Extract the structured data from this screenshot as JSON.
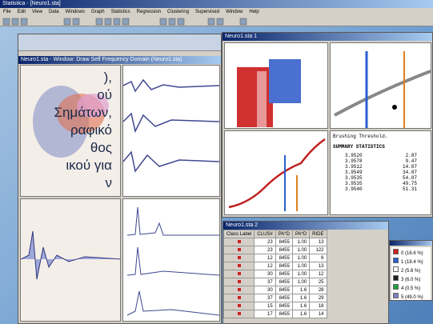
{
  "app": {
    "title": "Statistica - [Neuro1.sta]",
    "menu": [
      "File",
      "Edit",
      "View",
      "Data",
      "Windows",
      "Graph",
      "Statistics",
      "Regression",
      "Clustering",
      "Supervised",
      "Window",
      "Help"
    ]
  },
  "overlay_text": [
    "),",
    "ού",
    "Σημάτων,",
    "ραφικό",
    "θος",
    "ικού για",
    "ν"
  ],
  "left_window": {
    "title": "Neuro1.sta - Window: Draw Self Frequency Domain (Neuro1.sta)"
  },
  "right_window": {
    "title": "Neuro1.sta 1",
    "stats_panel": {
      "heading": "Brushing Threshold.",
      "subheading": "SUMMARY STATISTICS",
      "rows": [
        [
          "3.9520",
          "2.87"
        ],
        [
          "3.9578",
          "9.47"
        ],
        [
          "3.9512",
          "14.87"
        ],
        [
          "3.9549",
          "34.87"
        ],
        [
          "3.9535",
          "54.87"
        ],
        [
          "3.9535",
          "49.75"
        ],
        [
          "3.9540",
          "51.31"
        ]
      ]
    }
  },
  "table_window": {
    "title": "Neuro1.sta 2",
    "headers": [
      "Class Label",
      "CLUS#",
      "PA*D",
      "PA*D",
      "RIDE"
    ],
    "rows": [
      [
        "23",
        "8455",
        "1.00",
        "13"
      ],
      [
        "23",
        "8455",
        "1.00",
        "122"
      ],
      [
        "12",
        "8455",
        "1.00",
        "6"
      ],
      [
        "12",
        "8455",
        "1.00",
        "13"
      ],
      [
        "30",
        "8455",
        "1.00",
        "12"
      ],
      [
        "37",
        "8455",
        "1.00",
        "25"
      ],
      [
        "30",
        "8455",
        "1.6",
        "28"
      ],
      [
        "37",
        "8455",
        "1.6",
        "29"
      ],
      [
        "15",
        "8455",
        "1.6",
        "18"
      ],
      [
        "17",
        "8455",
        "1.6",
        "14"
      ]
    ]
  },
  "legend_window": {
    "items": [
      {
        "label": "0  (16.6 %)",
        "color": "#d02020"
      },
      {
        "label": "1  (18.4 %)",
        "color": "#2a5fd0"
      },
      {
        "label": "2  (5.6 %)",
        "color": "#ffffff"
      },
      {
        "label": "3  (6.0 %)",
        "color": "#202020"
      },
      {
        "label": "4  (0.5 %)",
        "color": "#20a040"
      },
      {
        "label": "5  (49.0 %)",
        "color": "#8080c0"
      }
    ]
  }
}
